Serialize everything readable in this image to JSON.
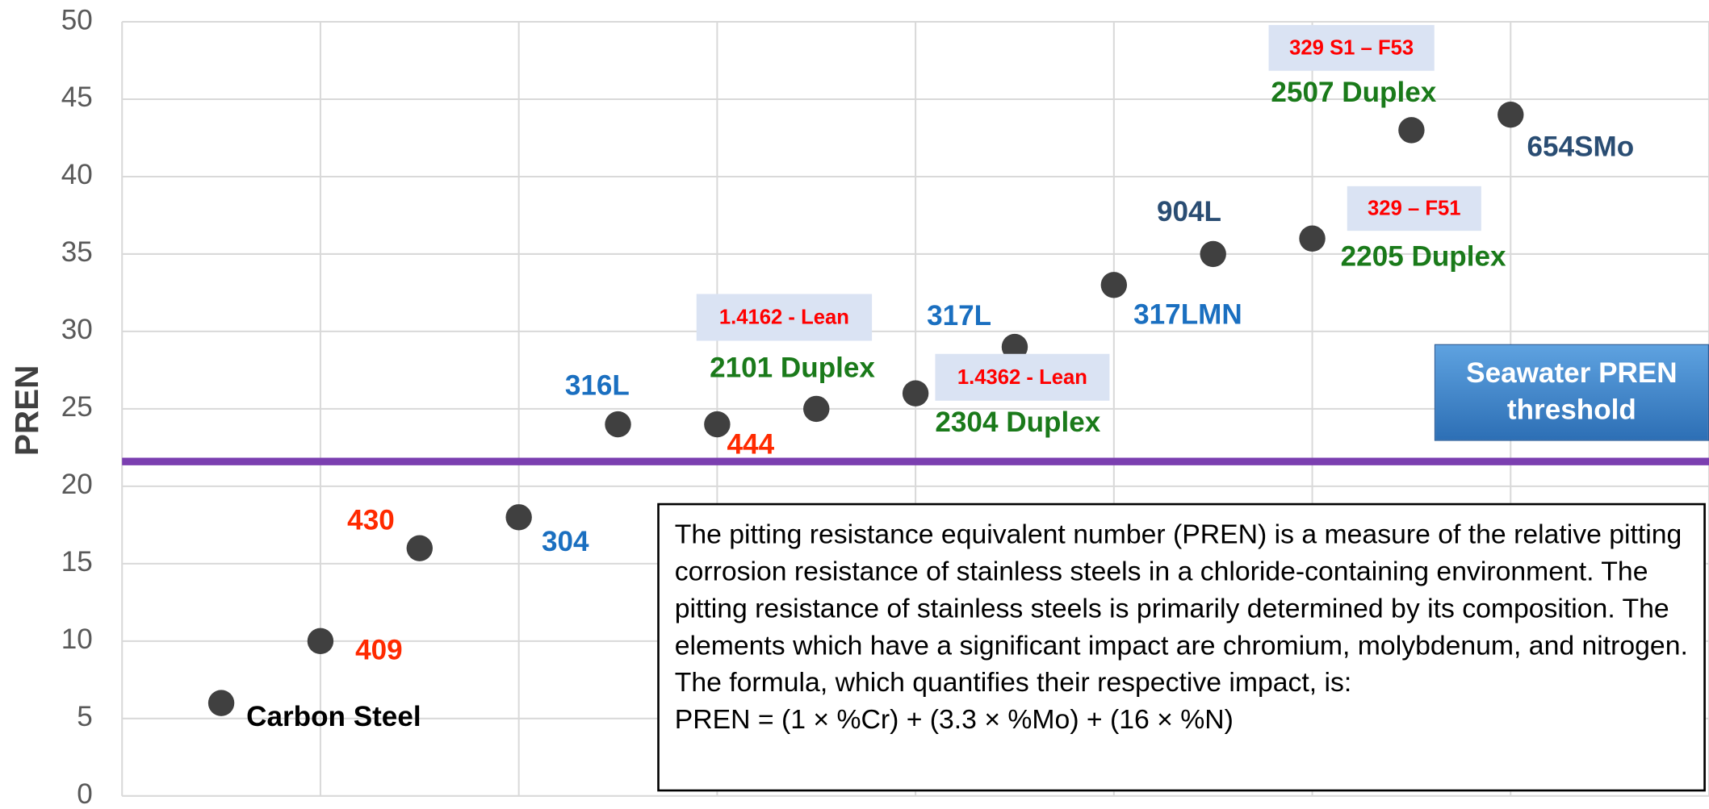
{
  "chart_data": {
    "type": "scatter",
    "ylabel": "PREN",
    "xlim": [
      0,
      8
    ],
    "ylim": [
      0,
      50
    ],
    "xticks": [
      0,
      1,
      2,
      3,
      4,
      5,
      6,
      7,
      8
    ],
    "yticks": [
      0,
      5,
      10,
      15,
      20,
      25,
      30,
      35,
      40,
      45,
      50
    ],
    "grid": true,
    "marker_color": "#404040",
    "x": [
      0.5,
      1,
      1.5,
      2,
      2.5,
      3,
      3.5,
      4,
      4.5,
      5,
      5.5,
      6,
      6.5,
      7
    ],
    "values": [
      6,
      10,
      16,
      18,
      24,
      24,
      25,
      26,
      29,
      33,
      35,
      36,
      43,
      44
    ],
    "point_labels": [
      "Carbon Steel",
      "409",
      "430",
      "304",
      "316L",
      "444",
      "2101 Duplex",
      "2304 Duplex",
      "317L",
      "317LMN",
      "904L",
      "2205 Duplex",
      "2507 Duplex",
      "654SMo"
    ],
    "label_colors": [
      "#000000",
      "#ff2a00",
      "#ff2a00",
      "#1a6fc0",
      "#1a6fc0",
      "#ff2a00",
      "#1a7a1a",
      "#1a7a1a",
      "#1a6fc0",
      "#1a6fc0",
      "#2a4d73",
      "#1a7a1a",
      "#1a7a1a",
      "#2a4d73"
    ],
    "annotations": [
      "1.4162 - Lean",
      "1.4362 - Lean",
      "329 – F51",
      "329 S1 – F53"
    ],
    "annotation_color": "#ff0000",
    "annotation_fill": "#dae3f3",
    "threshold": {
      "value": 21.6,
      "label": "Seawater PREN threshold",
      "color": "#7b3fb0"
    },
    "note": {
      "text": "The pitting resistance equivalent number (PREN) is a measure of the relative pitting corrosion resistance of stainless steels in a chloride-containing environment. The pitting resistance of stainless steels is primarily determined by its composition. The elements which have a significant impact are chromium, molybdenum, and nitrogen. The formula, which quantifies their respective impact, is:",
      "formula": "PREN = (1 × %Cr) + (3.3 × %Mo) + (16 × %N)"
    }
  }
}
